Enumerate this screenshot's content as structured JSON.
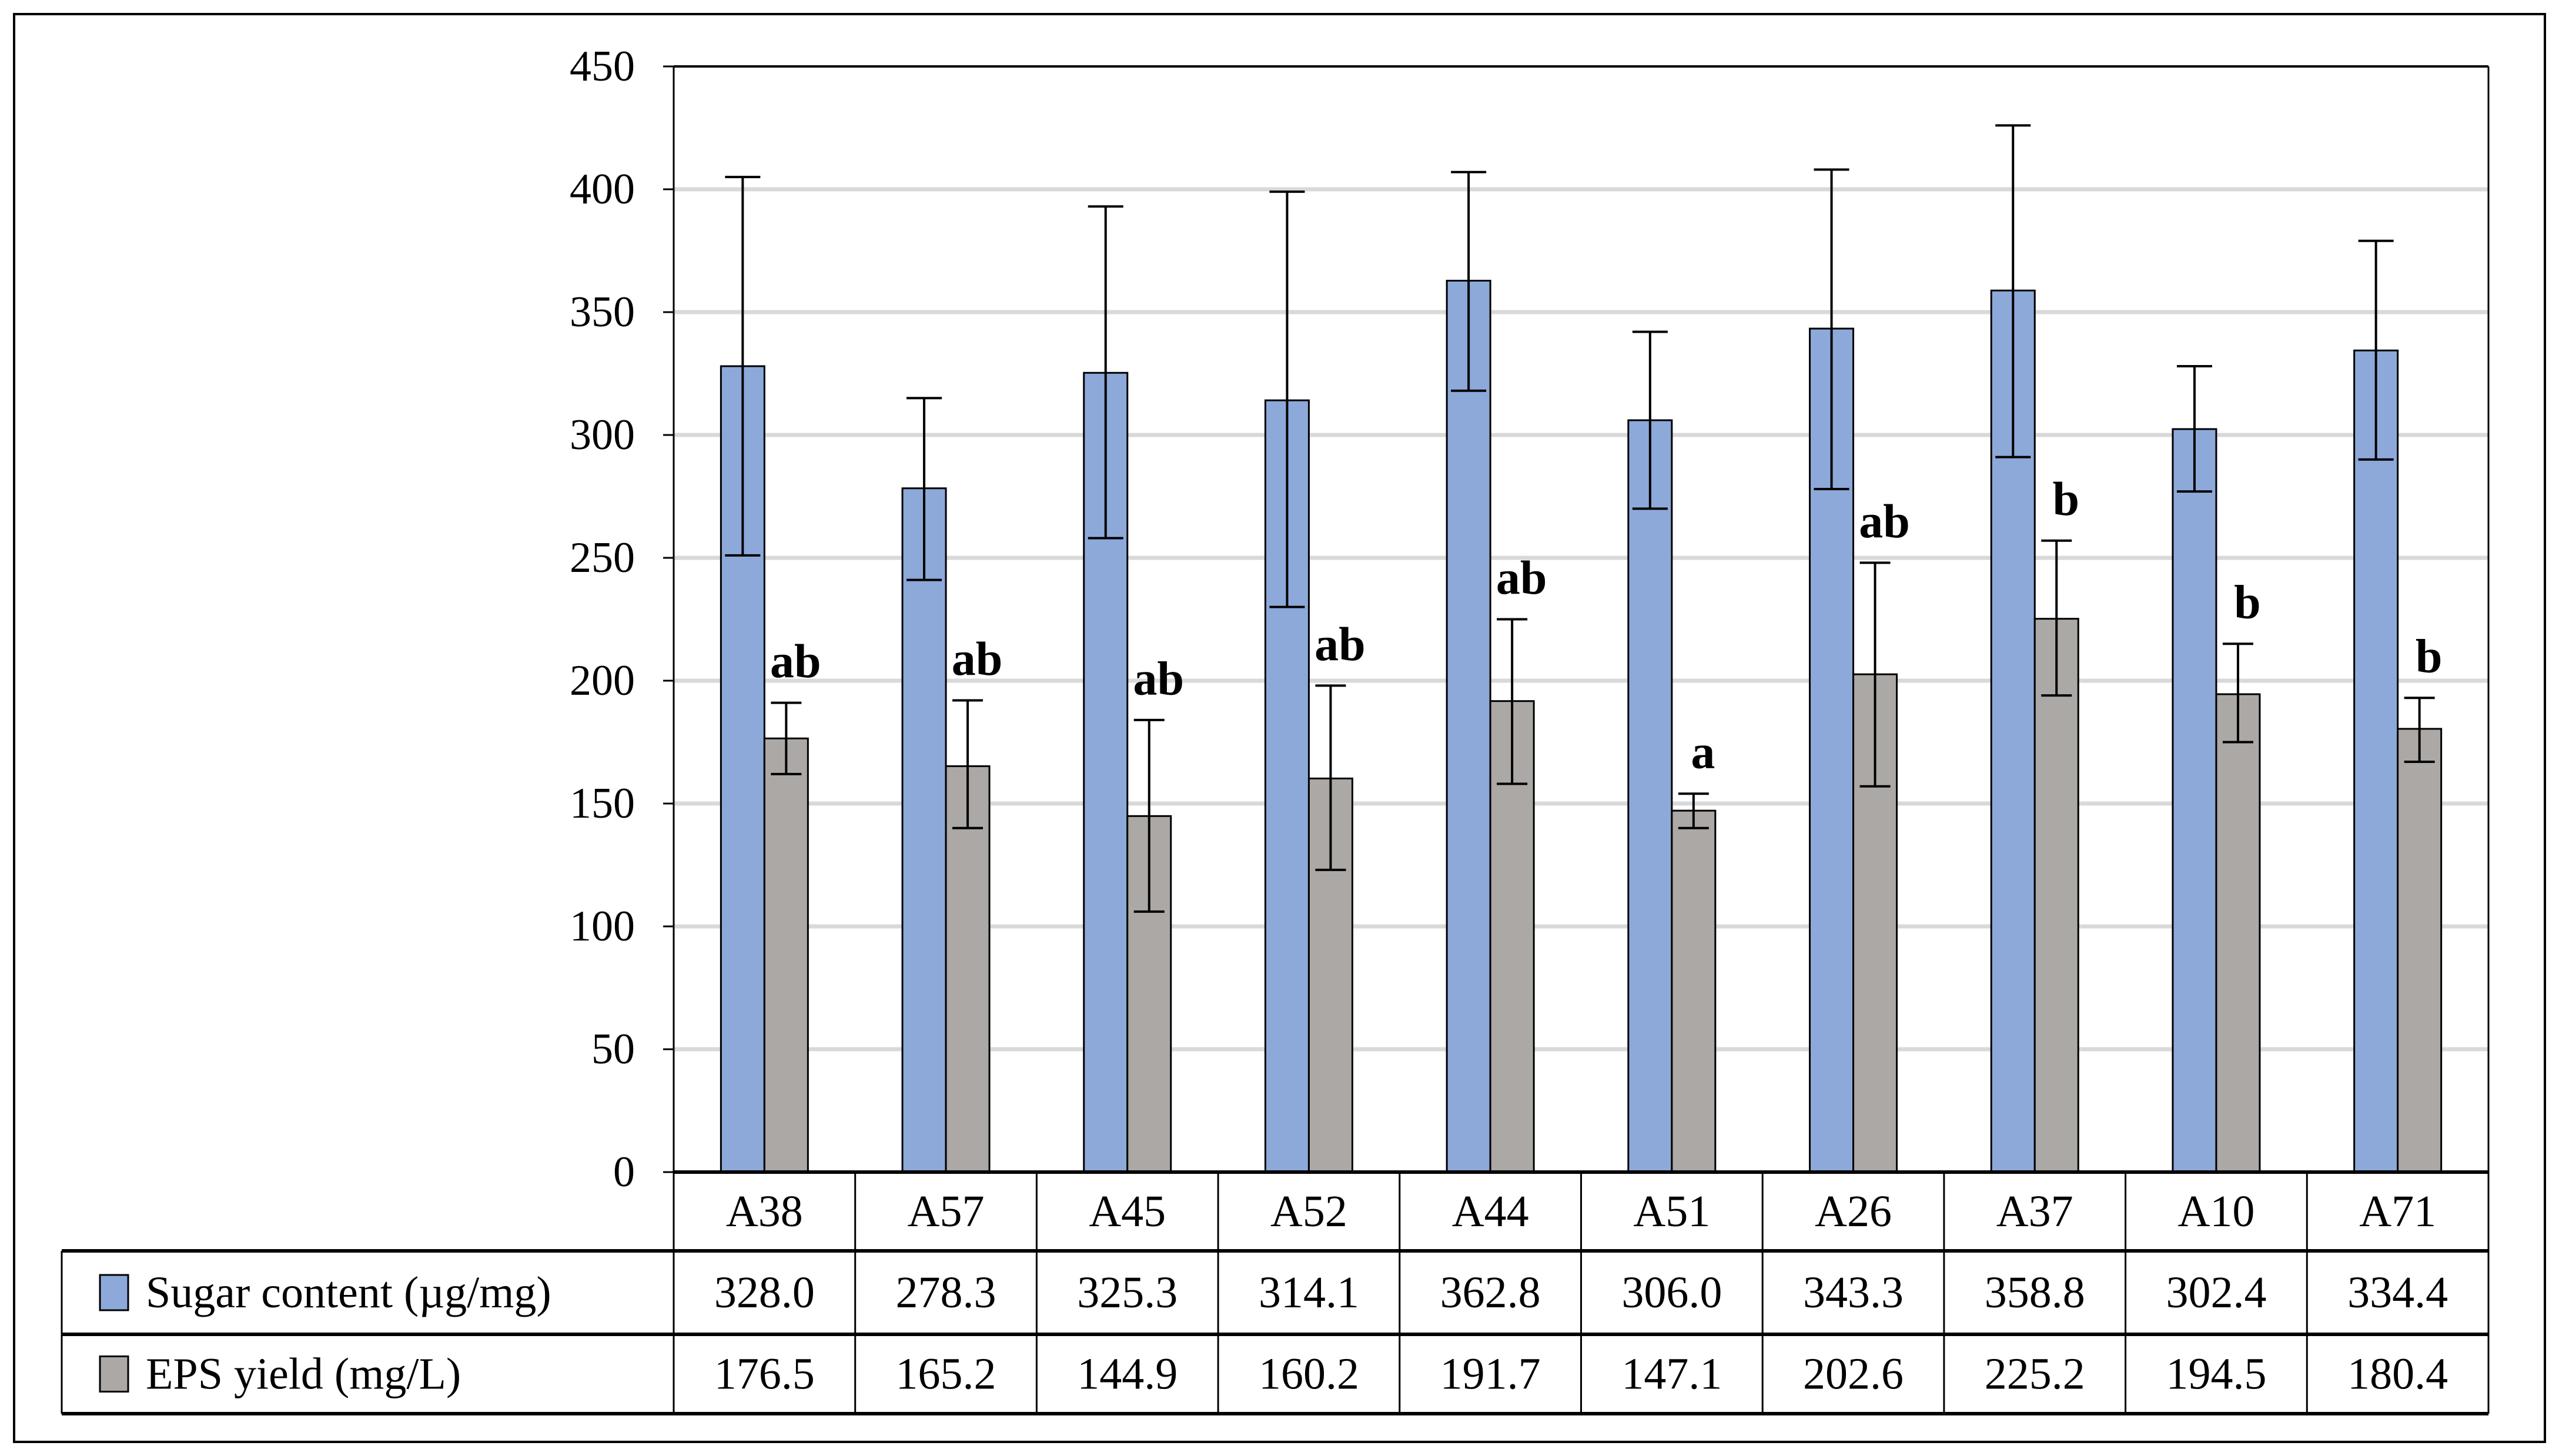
{
  "figure": {
    "background_color": "#FFFFFF",
    "outer_border_color": "#000000"
  },
  "chart_data": {
    "type": "bar",
    "title": "",
    "xlabel": "",
    "ylabel": "",
    "categories": [
      "A38",
      "A57",
      "A45",
      "A52",
      "A44",
      "A51",
      "A26",
      "A37",
      "A10",
      "A71"
    ],
    "series": [
      {
        "name": "Sugar content (µg/mg)",
        "color": "#8DA9DA",
        "values": [
          328.0,
          278.3,
          325.3,
          314.1,
          362.8,
          306.0,
          343.3,
          358.8,
          302.4,
          334.4
        ],
        "display_values": [
          "328.0",
          "278.3",
          "325.3",
          "314.1",
          "362.8",
          "306.0",
          "343.3",
          "358.8",
          "302.4",
          "334.4"
        ],
        "error_low": [
          251,
          241,
          258,
          230,
          318,
          270,
          278,
          291,
          277,
          290
        ],
        "error_high": [
          405,
          315,
          393,
          399,
          407,
          342,
          408,
          426,
          328,
          379
        ]
      },
      {
        "name": "EPS yield (mg/L)",
        "color": "#ABA8A5",
        "values": [
          176.5,
          165.2,
          144.9,
          160.2,
          191.7,
          147.1,
          202.6,
          225.2,
          194.5,
          180.4
        ],
        "display_values": [
          "176.5",
          "165.2",
          "144.9",
          "160.2",
          "191.7",
          "147.1",
          "202.6",
          "225.2",
          "194.5",
          "180.4"
        ],
        "error_low": [
          162,
          140,
          106,
          123,
          158,
          140,
          157,
          194,
          175,
          167
        ],
        "error_high": [
          191,
          192,
          184,
          198,
          225,
          154,
          248,
          257,
          215,
          193
        ]
      }
    ],
    "significance_letters": [
      "ab",
      "ab",
      "ab",
      "ab",
      "ab",
      "a",
      "ab",
      "b",
      "b",
      "b"
    ],
    "y_axis": {
      "min": 0,
      "max": 450,
      "step": 50,
      "tick_labels": [
        "0",
        "50",
        "100",
        "150",
        "200",
        "250",
        "300",
        "350",
        "400",
        "450"
      ]
    },
    "grid": true,
    "gridline_color": "#D9D9D9",
    "bar_border_color": "#000000",
    "error_bar_color": "#000000",
    "legend_position": "data-table-left"
  }
}
